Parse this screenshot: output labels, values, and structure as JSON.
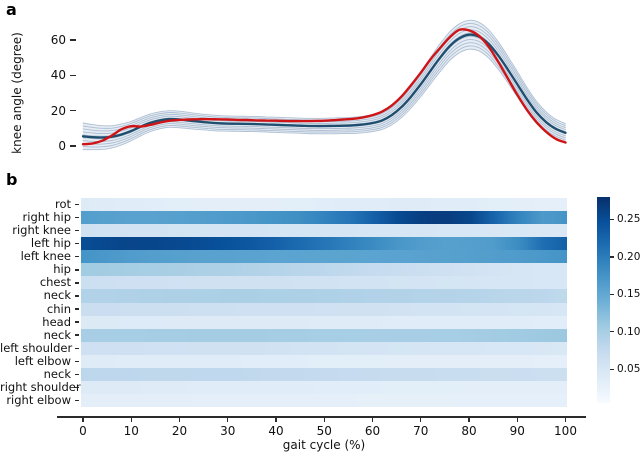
{
  "figure": {
    "panel_a_letter": "a",
    "panel_b_letter": "b",
    "panel_a_ylabel": "knee angle (degree)",
    "panel_b_xlabel": "gait cycle (%)"
  },
  "colors": {
    "mean_line": "#1f4e6e",
    "red_line": "#ce1417",
    "band_line": "#93a9c3",
    "band_fill": "#c9d6e6",
    "axis": "#2b2b2b"
  },
  "chart_data": [
    {
      "type": "line",
      "panel": "a",
      "title": "",
      "xlabel": "gait cycle (%)",
      "ylabel": "knee angle (degree)",
      "yticks": [
        0,
        20,
        40,
        60
      ],
      "ylim": [
        -10,
        78
      ],
      "xlim": [
        0,
        100
      ],
      "x_start": 0,
      "x_step": 2,
      "grid": false,
      "legend": "none",
      "series": [
        {
          "name": "blue_mean",
          "color": "#1f4e6e",
          "values": [
            5.5,
            5.0,
            4.8,
            5.2,
            6.5,
            8.5,
            11.0,
            13.2,
            14.6,
            15.3,
            15.0,
            14.4,
            13.8,
            13.3,
            12.9,
            12.7,
            12.6,
            12.5,
            12.4,
            12.2,
            12.0,
            11.8,
            11.6,
            11.4,
            11.3,
            11.3,
            11.4,
            11.5,
            11.7,
            12.2,
            13.0,
            14.5,
            17.5,
            22.0,
            28.0,
            35.0,
            42.5,
            50.0,
            56.5,
            61.0,
            63.0,
            62.0,
            58.0,
            51.5,
            43.5,
            35.0,
            26.5,
            19.0,
            13.5,
            9.7,
            7.5
          ]
        },
        {
          "name": "red_curve",
          "color": "#ce1417",
          "values": [
            1.0,
            1.5,
            3.0,
            6.0,
            9.5,
            11.2,
            11.0,
            12.0,
            13.3,
            14.3,
            14.8,
            15.0,
            15.2,
            15.2,
            15.1,
            15.0,
            14.8,
            14.7,
            14.5,
            14.4,
            14.3,
            14.2,
            14.1,
            14.1,
            14.2,
            14.3,
            14.6,
            15.0,
            15.4,
            16.2,
            17.5,
            19.5,
            23.0,
            28.0,
            34.5,
            41.5,
            49.0,
            55.5,
            61.5,
            65.8,
            65.5,
            62.5,
            56.5,
            48.0,
            38.5,
            29.0,
            20.5,
            13.5,
            8.0,
            4.0,
            2.0
          ]
        }
      ],
      "band": {
        "around_series": "blue_mean",
        "halfwidth": [
          7.5,
          7.1,
          6.7,
          6.3,
          5.9,
          5.5,
          5.2,
          5.0,
          4.8,
          4.7,
          4.7,
          4.6,
          4.5,
          4.4,
          4.4,
          4.3,
          4.3,
          4.3,
          4.3,
          4.3,
          4.3,
          4.3,
          4.3,
          4.3,
          4.4,
          4.4,
          4.5,
          4.5,
          4.6,
          4.7,
          4.8,
          5.1,
          5.5,
          6.0,
          6.5,
          7.0,
          7.5,
          7.9,
          8.1,
          8.2,
          8.2,
          8.1,
          8.0,
          7.8,
          7.5,
          7.2,
          6.8,
          6.3,
          5.8,
          5.4,
          5.2
        ],
        "n_lines": 10
      }
    },
    {
      "type": "heatmap",
      "panel": "b",
      "xlabel": "gait cycle (%)",
      "xticks": [
        0,
        10,
        20,
        30,
        40,
        50,
        60,
        70,
        80,
        90,
        100
      ],
      "x_start": 0,
      "x_step": 5,
      "colormap": "Blues",
      "vmin": 0.005,
      "vmax": 0.28,
      "colorbar_ticks": [
        0.05,
        0.1,
        0.15,
        0.2,
        0.25
      ],
      "rows": [
        {
          "label": "rot",
          "values": [
            0.04,
            0.038,
            0.036,
            0.035,
            0.034,
            0.033,
            0.032,
            0.032,
            0.033,
            0.034,
            0.035,
            0.036,
            0.037,
            0.038,
            0.038,
            0.037,
            0.036,
            0.034,
            0.032,
            0.03,
            0.03
          ]
        },
        {
          "label": "right hip",
          "values": [
            0.162,
            0.16,
            0.158,
            0.158,
            0.16,
            0.163,
            0.167,
            0.17,
            0.174,
            0.18,
            0.192,
            0.206,
            0.228,
            0.252,
            0.264,
            0.266,
            0.258,
            0.225,
            0.192,
            0.168,
            0.174
          ]
        },
        {
          "label": "right knee",
          "values": [
            0.06,
            0.058,
            0.057,
            0.056,
            0.055,
            0.055,
            0.054,
            0.054,
            0.053,
            0.053,
            0.052,
            0.052,
            0.051,
            0.05,
            0.05,
            0.049,
            0.048,
            0.047,
            0.046,
            0.045,
            0.045
          ]
        },
        {
          "label": "left hip",
          "values": [
            0.25,
            0.255,
            0.258,
            0.257,
            0.254,
            0.25,
            0.245,
            0.238,
            0.228,
            0.218,
            0.207,
            0.196,
            0.184,
            0.172,
            0.164,
            0.16,
            0.161,
            0.166,
            0.182,
            0.214,
            0.23
          ]
        },
        {
          "label": "left knee",
          "values": [
            0.175,
            0.17,
            0.165,
            0.162,
            0.16,
            0.158,
            0.158,
            0.157,
            0.156,
            0.156,
            0.155,
            0.155,
            0.156,
            0.157,
            0.158,
            0.159,
            0.161,
            0.163,
            0.166,
            0.17,
            0.174
          ]
        },
        {
          "label": "hip",
          "values": [
            0.105,
            0.104,
            0.102,
            0.1,
            0.098,
            0.096,
            0.094,
            0.091,
            0.088,
            0.085,
            0.082,
            0.078,
            0.074,
            0.07,
            0.066,
            0.062,
            0.058,
            0.054,
            0.051,
            0.049,
            0.048
          ]
        },
        {
          "label": "chest",
          "values": [
            0.065,
            0.064,
            0.063,
            0.062,
            0.061,
            0.06,
            0.06,
            0.059,
            0.059,
            0.058,
            0.058,
            0.057,
            0.056,
            0.055,
            0.054,
            0.053,
            0.052,
            0.051,
            0.05,
            0.049,
            0.048
          ]
        },
        {
          "label": "neck",
          "values": [
            0.092,
            0.092,
            0.093,
            0.094,
            0.095,
            0.096,
            0.097,
            0.097,
            0.096,
            0.095,
            0.094,
            0.093,
            0.092,
            0.091,
            0.09,
            0.089,
            0.088,
            0.086,
            0.084,
            0.082,
            0.08
          ]
        },
        {
          "label": "chin",
          "values": [
            0.068,
            0.067,
            0.066,
            0.066,
            0.065,
            0.064,
            0.064,
            0.063,
            0.062,
            0.062,
            0.061,
            0.06,
            0.059,
            0.058,
            0.057,
            0.056,
            0.055,
            0.054,
            0.053,
            0.052,
            0.051
          ]
        },
        {
          "label": "head",
          "values": [
            0.042,
            0.042,
            0.041,
            0.041,
            0.04,
            0.04,
            0.04,
            0.039,
            0.039,
            0.039,
            0.038,
            0.038,
            0.038,
            0.037,
            0.037,
            0.037,
            0.036,
            0.036,
            0.036,
            0.035,
            0.035
          ]
        },
        {
          "label": "neck",
          "values": [
            0.1,
            0.1,
            0.101,
            0.102,
            0.102,
            0.103,
            0.103,
            0.103,
            0.102,
            0.102,
            0.101,
            0.101,
            0.1,
            0.1,
            0.1,
            0.101,
            0.102,
            0.104,
            0.106,
            0.108,
            0.11
          ]
        },
        {
          "label": "left shoulder",
          "values": [
            0.063,
            0.062,
            0.062,
            0.061,
            0.061,
            0.06,
            0.06,
            0.059,
            0.058,
            0.057,
            0.056,
            0.055,
            0.054,
            0.053,
            0.052,
            0.051,
            0.05,
            0.049,
            0.048,
            0.047,
            0.046
          ]
        },
        {
          "label": "left elbow",
          "values": [
            0.038,
            0.038,
            0.037,
            0.037,
            0.036,
            0.036,
            0.036,
            0.035,
            0.035,
            0.035,
            0.034,
            0.034,
            0.034,
            0.033,
            0.033,
            0.033,
            0.032,
            0.032,
            0.032,
            0.031,
            0.031
          ]
        },
        {
          "label": "neck",
          "values": [
            0.082,
            0.081,
            0.081,
            0.08,
            0.08,
            0.079,
            0.079,
            0.078,
            0.077,
            0.076,
            0.075,
            0.074,
            0.073,
            0.072,
            0.071,
            0.07,
            0.069,
            0.068,
            0.067,
            0.066,
            0.065
          ]
        },
        {
          "label": "right shoulder",
          "values": [
            0.04,
            0.039,
            0.039,
            0.038,
            0.038,
            0.037,
            0.037,
            0.036,
            0.036,
            0.036,
            0.035,
            0.035,
            0.035,
            0.034,
            0.034,
            0.034,
            0.033,
            0.033,
            0.033,
            0.032,
            0.032
          ]
        },
        {
          "label": "right elbow",
          "values": [
            0.033,
            0.033,
            0.032,
            0.032,
            0.032,
            0.031,
            0.031,
            0.031,
            0.03,
            0.03,
            0.03,
            0.03,
            0.029,
            0.029,
            0.029,
            0.029,
            0.028,
            0.028,
            0.028,
            0.028,
            0.028
          ]
        }
      ]
    }
  ]
}
